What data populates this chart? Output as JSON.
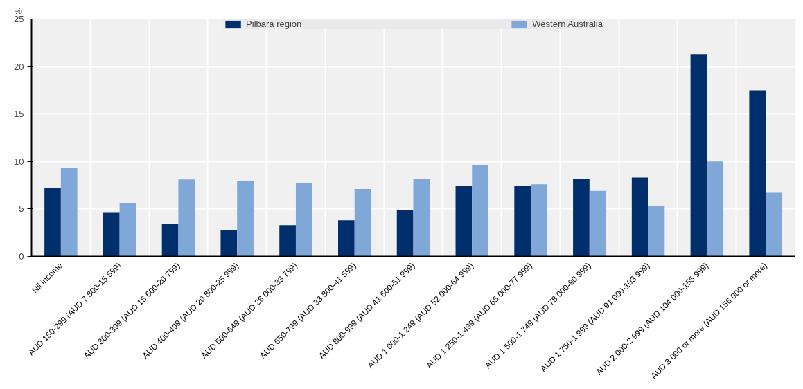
{
  "chart_data": {
    "type": "bar",
    "ylabel": "%",
    "categories": [
      "Nil income",
      "AUD 150-299 (AUD 7 800-15 599)",
      "AUD 300-399 (AUD 15 600-20 799)",
      "AUD 400-499 (AUD 20 800-25 999)",
      "AUD 500-649 (AUD 26 000-33 799)",
      "AUD 650-799 (AUD 33 800-41 599)",
      "AUD 800-999 (AUD 41 600-51 999)",
      "AUD 1 000-1 249 (AUD 52 000-64 999)",
      "AUD 1 250-1 499 (AUD 65 000-77 999)",
      "AUD 1 500-1 749 (AUD 78 000-90 999)",
      "AUD 1 750-1 999 (AUD 91 000-103 999)",
      "AUD 2 000-2 999 (AUD 104 000-155 999)",
      "AUD 3 000 or more (AUD 156 000 or more)"
    ],
    "series": [
      {
        "name": "Pilbara region",
        "color": "#002f6c",
        "values": [
          7.2,
          4.6,
          3.4,
          2.8,
          3.3,
          3.8,
          4.9,
          7.4,
          7.4,
          8.2,
          8.3,
          21.3,
          17.5
        ]
      },
      {
        "name": "Western Australia",
        "color": "#7fa7d8",
        "values": [
          9.3,
          5.6,
          8.1,
          7.9,
          7.7,
          7.1,
          8.2,
          9.6,
          7.6,
          6.9,
          5.3,
          10.0,
          6.7
        ]
      }
    ],
    "ylim": [
      0,
      25
    ],
    "yticks": [
      0,
      5,
      10,
      15,
      20,
      25
    ],
    "grid": true,
    "legend": "top"
  }
}
